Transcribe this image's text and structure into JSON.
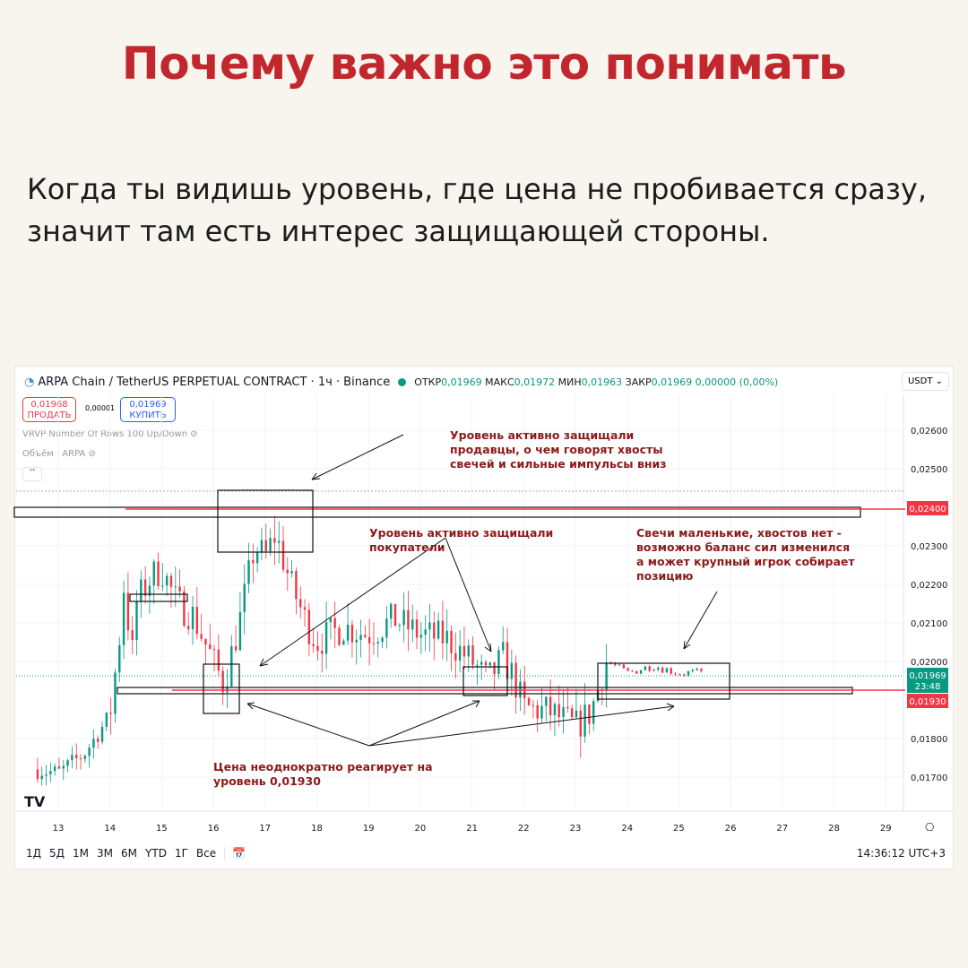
{
  "title": "Почему важно это понимать",
  "paragraph": "Когда ты видишь уровень, где цена не пробивается сразу, значит там есть интерес защищающей стороны.",
  "chart": {
    "symbol": "ARPA Chain / TetherUS PERPETUAL CONTRACT · 1ч · Binance",
    "ohlc": {
      "open_label": "ОТКР",
      "open": "0,01969",
      "high_label": "МАКС",
      "high": "0,01972",
      "low_label": "МИН",
      "low": "0,01963",
      "close_label": "ЗАКР",
      "close": "0,01969",
      "change": "0,00000 (0,00%)"
    },
    "sell": {
      "price": "0,01968",
      "label": "ПРОДАТЬ"
    },
    "spread": "0,00001",
    "buy": {
      "price": "0,01969",
      "label": "КУПИТЬ"
    },
    "indicators": [
      "VRVP Number Of Rows 100 Up/Down",
      "Объём · ARPA"
    ],
    "currency": "USDT",
    "price_ticks": [
      "0,02600",
      "0,02500",
      "0,02300",
      "0,02200",
      "0,02100",
      "0,02000",
      "0,01800",
      "0,01700"
    ],
    "level_high": "0,02400",
    "level_low": "0,01930",
    "current_price": "0,01969",
    "countdown": "23:48",
    "date_ticks": [
      "13",
      "14",
      "15",
      "16",
      "17",
      "18",
      "19",
      "20",
      "21",
      "22",
      "23",
      "24",
      "25",
      "26",
      "27",
      "28",
      "29"
    ],
    "timeframes": [
      "1Д",
      "5Д",
      "1М",
      "3М",
      "6М",
      "YTD",
      "1Г",
      "Все"
    ],
    "clock": "14:36:12 UTC+3",
    "colors": {
      "up": "#089981",
      "down": "#f23645",
      "annotation": "#8b1a1a",
      "title": "#c1272d"
    },
    "annotations": {
      "sellers": [
        "Уровень активно защищали",
        "продавцы, о чем говорят хвосты",
        "свечей и сильные импульсы вниз"
      ],
      "buyers": [
        "Уровень активно защищали",
        "покупатели"
      ],
      "small_candles": [
        "Свечи маленькие, хвостов нет -",
        "возможно баланс сил изменился",
        "а может крупный игрок собирает",
        "позицию"
      ],
      "reaction": [
        "Цена неоднократно реагирует на",
        "уровень 0,01930"
      ]
    },
    "price_path": [
      [
        12.6,
        0.0172
      ],
      [
        13,
        0.0171
      ],
      [
        13.5,
        0.0176
      ],
      [
        14,
        0.0186
      ],
      [
        14.2,
        0.0208
      ],
      [
        14.3,
        0.0225
      ],
      [
        14.4,
        0.0196
      ],
      [
        14.5,
        0.0215
      ],
      [
        14.8,
        0.0222
      ],
      [
        15,
        0.0224
      ],
      [
        15.3,
        0.0215
      ],
      [
        15.6,
        0.0212
      ],
      [
        16,
        0.02
      ],
      [
        16.2,
        0.0194
      ],
      [
        16.5,
        0.021
      ],
      [
        16.8,
        0.023
      ],
      [
        17,
        0.0227
      ],
      [
        17.2,
        0.0233
      ],
      [
        17.5,
        0.022
      ],
      [
        17.8,
        0.021
      ],
      [
        18,
        0.0205
      ],
      [
        18.5,
        0.0209
      ],
      [
        19,
        0.0207
      ],
      [
        19.5,
        0.0211
      ],
      [
        20,
        0.0207
      ],
      [
        20.5,
        0.0206
      ],
      [
        21,
        0.02
      ],
      [
        21.3,
        0.0195
      ],
      [
        21.6,
        0.0201
      ],
      [
        21.8,
        0.0196
      ],
      [
        22,
        0.0188
      ],
      [
        22.5,
        0.0187
      ],
      [
        23,
        0.0183
      ],
      [
        23.3,
        0.0187
      ],
      [
        23.6,
        0.02
      ],
      [
        24,
        0.0197
      ],
      [
        24.5,
        0.0199
      ],
      [
        25,
        0.0197
      ],
      [
        25.5,
        0.0197
      ]
    ]
  }
}
